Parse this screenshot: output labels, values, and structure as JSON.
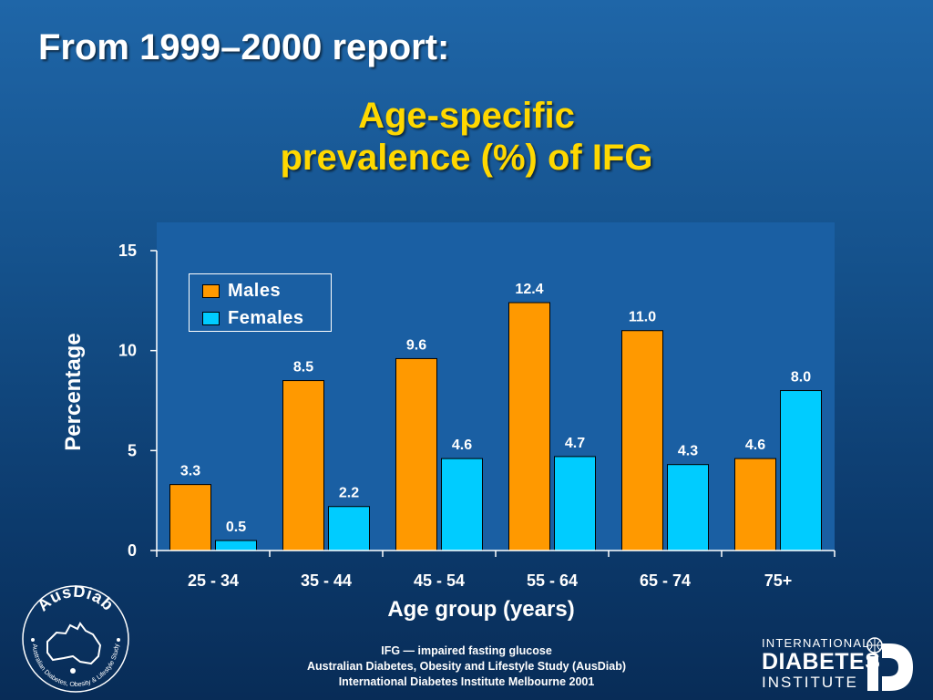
{
  "slide": {
    "heading": "From 1999–2000 report:",
    "chart_title_line1": "Age-specific",
    "chart_title_line2": "prevalence (%) of IFG"
  },
  "footnote": {
    "line1": "IFG — impaired fasting glucose",
    "line2": "Australian Diabetes, Obesity and Lifestyle Study (AusDiab)",
    "line3": "International Diabetes Institute Melbourne 2001"
  },
  "logos": {
    "ausdiab_name": "AusDiab",
    "ausdiab_subtitle": "Australian Diabetes, Obesity & Lifestyle Study",
    "idi_line1": "INTERNATIONAL",
    "idi_line2": "DIABETES",
    "idi_line3": "INSTITUTE"
  },
  "colors": {
    "males": "#ff9900",
    "females": "#00ccff",
    "title_yellow": "#ffd800",
    "plot_bg": "#1a5fa3"
  },
  "chart_data": {
    "type": "bar",
    "title": "Age-specific prevalence (%) of IFG",
    "xlabel": "Age group (years)",
    "ylabel": "Percentage",
    "categories": [
      "25 - 34",
      "35 - 44",
      "45 - 54",
      "55 - 64",
      "65 - 74",
      "75+"
    ],
    "series": [
      {
        "name": "Males",
        "values": [
          3.3,
          8.5,
          9.6,
          12.4,
          11.0,
          4.6
        ],
        "labels": [
          "3.3",
          "8.5",
          "9.6",
          "12.4",
          "11.0",
          "4.6"
        ]
      },
      {
        "name": "Females",
        "values": [
          0.5,
          2.2,
          4.6,
          4.7,
          4.3,
          8.0
        ],
        "labels": [
          "0.5",
          "2.2",
          "4.6",
          "4.7",
          "4.3",
          "8.0"
        ]
      }
    ],
    "ylim": [
      0,
      15
    ],
    "yticks": [
      0,
      5,
      10,
      15
    ],
    "grid": false,
    "legend": "top-left"
  }
}
